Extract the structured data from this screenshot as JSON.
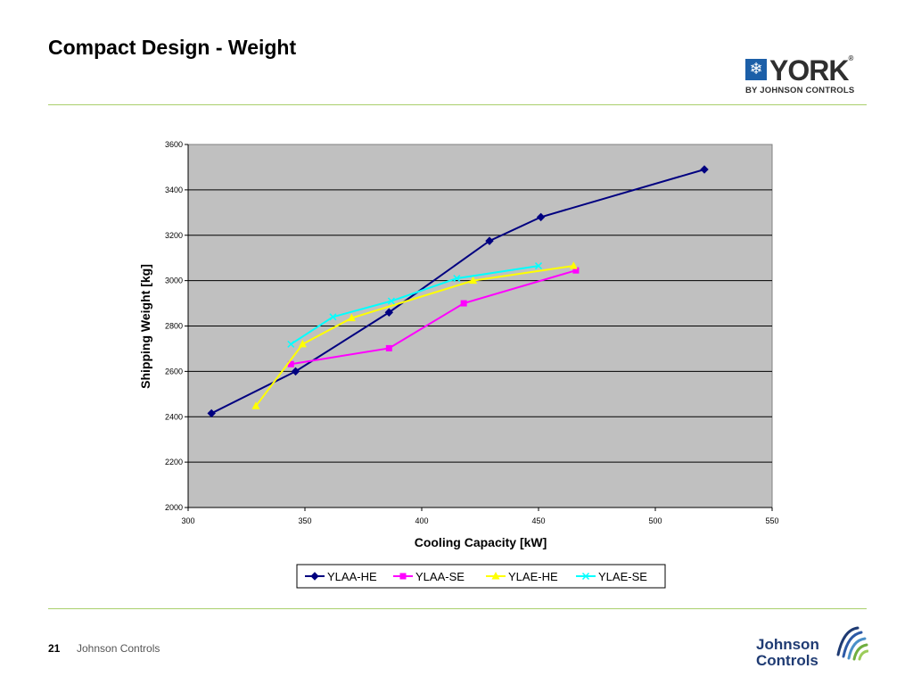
{
  "slide": {
    "title": "Compact Design - Weight",
    "page_number": "21",
    "company": "Johnson Controls"
  },
  "brand": {
    "york_word": "YORK",
    "york_registered": "®",
    "york_sub": "BY JOHNSON CONTROLS",
    "jc_line1": "Johnson",
    "jc_line2": "Controls",
    "accent_rule": "#a9cf6b"
  },
  "chart_data": {
    "type": "line",
    "xlabel": "Cooling Capacity [kW]",
    "ylabel": "Shipping Weight [kg]",
    "xlim": [
      300,
      550
    ],
    "ylim": [
      2000,
      3600
    ],
    "xticks": [
      300,
      350,
      400,
      450,
      500,
      550
    ],
    "yticks": [
      2000,
      2200,
      2400,
      2600,
      2800,
      3000,
      3200,
      3400,
      3600
    ],
    "grid": "horizontal",
    "plot_background": "#c0c0c0",
    "legend_position": "bottom",
    "series": [
      {
        "name": "YLAA-HE",
        "color": "#000080",
        "marker": "diamond",
        "x": [
          310,
          346,
          386,
          429,
          451,
          521
        ],
        "y": [
          2415,
          2600,
          2860,
          3175,
          3280,
          3490
        ]
      },
      {
        "name": "YLAA-SE",
        "color": "#ff00ff",
        "marker": "square",
        "x": [
          344,
          386,
          418,
          466
        ],
        "y": [
          2632,
          2702,
          2900,
          3045
        ]
      },
      {
        "name": "YLAE-HE",
        "color": "#ffff00",
        "marker": "triangle",
        "x": [
          329,
          349,
          370,
          422,
          465
        ],
        "y": [
          2447,
          2720,
          2835,
          3000,
          3065
        ]
      },
      {
        "name": "YLAE-SE",
        "color": "#00ffff",
        "marker": "x",
        "x": [
          344,
          362,
          387,
          415,
          450
        ],
        "y": [
          2720,
          2840,
          2910,
          3010,
          3065
        ]
      }
    ]
  }
}
